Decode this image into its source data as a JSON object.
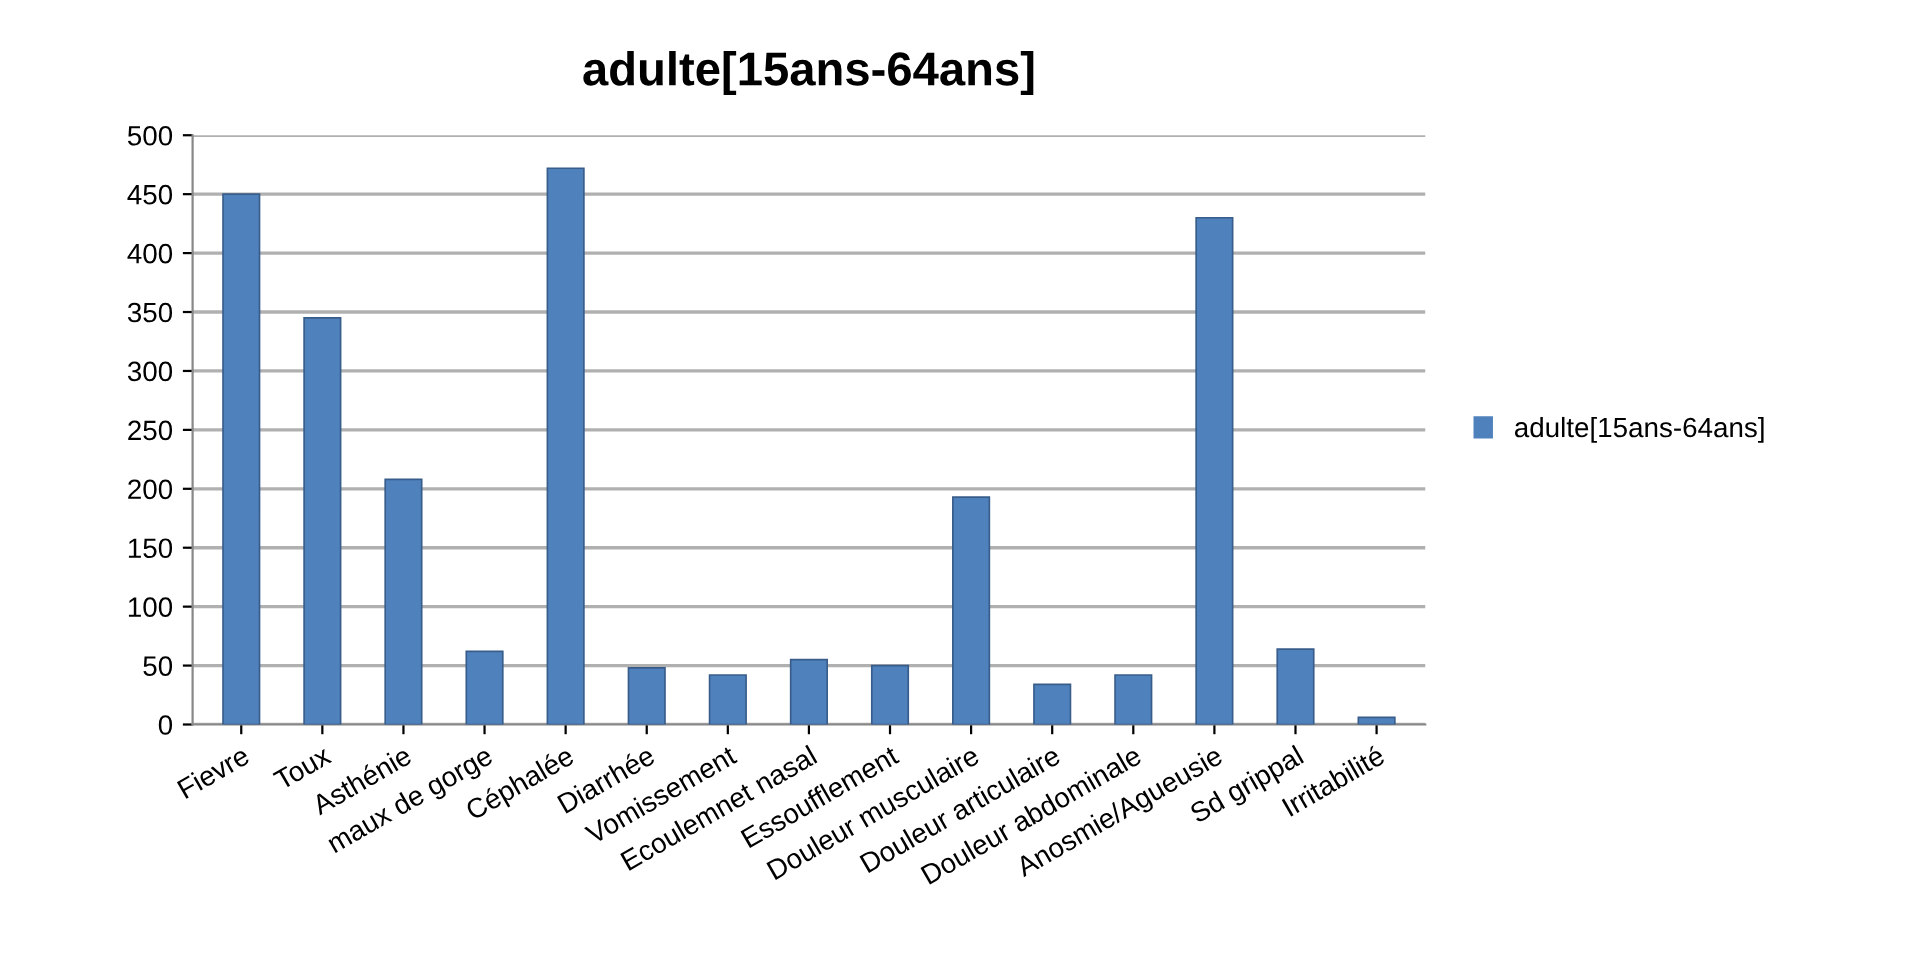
{
  "chart_data": {
    "type": "bar",
    "title": "adulte[15ans-64ans]",
    "categories": [
      "Fievre",
      "Toux",
      "Asthénie",
      "maux de gorge",
      "Céphalée",
      "Diarrhée",
      "Vomissement",
      "Ecoulemnet nasal",
      "Essoufflement",
      "Douleur musculaire",
      "Douleur articulaire",
      "Douleur abdominale",
      "Anosmie/Agueusie",
      "Sd grippal",
      "Irritabilité"
    ],
    "series": [
      {
        "name": "adulte[15ans-64ans]",
        "color": "#4f81bd",
        "values": [
          450,
          345,
          208,
          62,
          472,
          48,
          42,
          55,
          50,
          193,
          34,
          42,
          430,
          64,
          6
        ]
      }
    ],
    "ylim": [
      0,
      500
    ],
    "yticks": [
      0,
      50,
      100,
      150,
      200,
      250,
      300,
      350,
      400,
      450,
      500
    ],
    "grid": "y",
    "legend": "right"
  }
}
